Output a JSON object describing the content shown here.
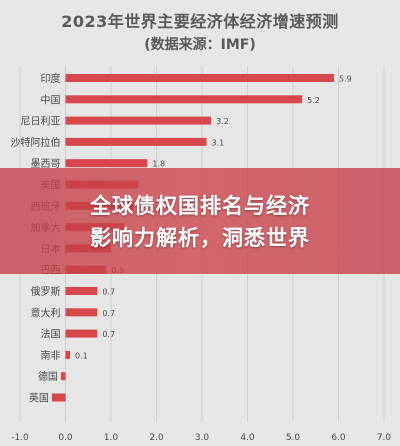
{
  "chart_data": {
    "type": "bar",
    "orientation": "horizontal",
    "title": "2023年世界主要经济体经济增速预测",
    "subtitle": "(数据来源：IMF)",
    "categories": [
      "印度",
      "中国",
      "尼日利亚",
      "沙特阿拉伯",
      "墨西哥",
      "美国",
      "西班牙",
      "加拿大",
      "日本",
      "巴西",
      "俄罗斯",
      "意大利",
      "法国",
      "南非",
      "德国",
      "英国"
    ],
    "values": [
      5.9,
      5.2,
      3.2,
      3.1,
      1.8,
      1.6,
      1.5,
      1.3,
      1.0,
      0.9,
      0.7,
      0.7,
      0.7,
      0.1,
      -0.1,
      -0.3
    ],
    "visible_data_labels": [
      "5.9",
      "5.2",
      "3.2",
      "3.1",
      "1.8",
      "",
      "",
      "",
      "",
      "0.9",
      "0.7",
      "0.7",
      "0.7",
      "0.1",
      "",
      ""
    ],
    "xticks": [
      "-1.0",
      "0.0",
      "1.0",
      "2.0",
      "3.0",
      "4.0",
      "5.0",
      "6.0",
      "7.0"
    ],
    "xlim": [
      -1.0,
      7.0
    ],
    "grid": true,
    "colors": {
      "bar": "#d8474b",
      "grid": "#cfcfcf",
      "background": "#e6e6e6",
      "text": "#4a4a4a"
    }
  },
  "overlay": {
    "headline_line1": "全球债权国排名与经济",
    "headline_line2": "影响力解析，洞悉世界",
    "color": "#c43c46"
  }
}
